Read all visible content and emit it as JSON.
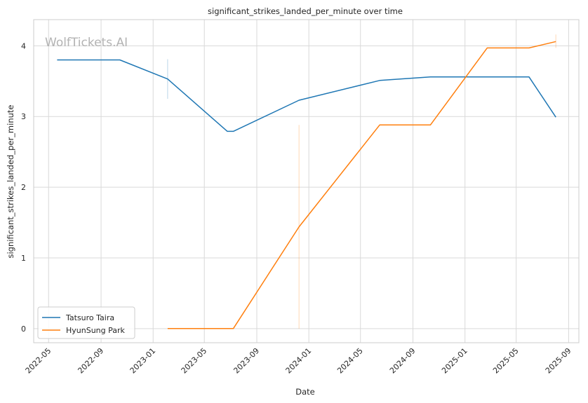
{
  "chart_data": {
    "type": "line",
    "title": "significant_strikes_landed_per_minute over time",
    "xlabel": "Date",
    "ylabel": "significant_strikes_landed_per_minute",
    "watermark": "WolfTickets.AI",
    "x_ticks": [
      "2022-05",
      "2022-09",
      "2023-01",
      "2023-05",
      "2023-09",
      "2024-01",
      "2024-05",
      "2024-09",
      "2025-01",
      "2025-05",
      "2025-09"
    ],
    "y_ticks": [
      0,
      1,
      2,
      3,
      4
    ],
    "xlim": [
      "2022-03-27",
      "2025-09-25"
    ],
    "ylim": [
      -0.2,
      4.37
    ],
    "grid": true,
    "legend_position": "lower-left",
    "series": [
      {
        "name": "Tatsuro Taira",
        "color": "#1f77b4",
        "points": [
          {
            "x": "2022-05-21",
            "y": 3.8
          },
          {
            "x": "2022-10-15",
            "y": 3.8
          },
          {
            "x": "2023-02-04",
            "y": 3.53
          },
          {
            "x": "2023-06-24",
            "y": 2.79
          },
          {
            "x": "2023-07-08",
            "y": 2.79
          },
          {
            "x": "2023-12-09",
            "y": 3.23
          },
          {
            "x": "2024-06-15",
            "y": 3.51
          },
          {
            "x": "2024-10-12",
            "y": 3.56
          },
          {
            "x": "2025-05-31",
            "y": 3.56
          },
          {
            "x": "2025-08-02",
            "y": 2.99
          }
        ],
        "error_bars": [
          {
            "x": "2023-02-04",
            "low": 3.25,
            "high": 3.81
          }
        ]
      },
      {
        "name": "HyunSung Park",
        "color": "#ff7f0e",
        "points": [
          {
            "x": "2023-02-04",
            "y": 0.0
          },
          {
            "x": "2023-07-08",
            "y": 0.0
          },
          {
            "x": "2023-12-09",
            "y": 1.44
          },
          {
            "x": "2024-06-15",
            "y": 2.88
          },
          {
            "x": "2024-10-12",
            "y": 2.88
          },
          {
            "x": "2025-02-22",
            "y": 3.97
          },
          {
            "x": "2025-05-31",
            "y": 3.97
          },
          {
            "x": "2025-08-02",
            "y": 4.06
          }
        ],
        "error_bars": [
          {
            "x": "2023-12-09",
            "low": 0.0,
            "high": 2.88
          },
          {
            "x": "2025-08-02",
            "low": 3.97,
            "high": 4.16
          }
        ]
      }
    ]
  }
}
